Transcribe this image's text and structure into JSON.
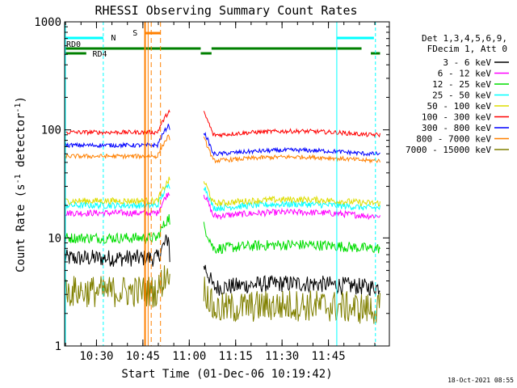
{
  "chart_data": {
    "type": "line",
    "title": "RHESSI Observing Summary Count Rates",
    "xlabel": "Start Time (01-Dec-06 10:19:42)",
    "ylabel_main": "Count Rate (s",
    "ylabel_sup1": "-1",
    "ylabel_mid": " detector",
    "ylabel_sup2": "-1",
    "ylabel_end": ")",
    "yscale": "log",
    "ylim": [
      1,
      1000
    ],
    "xlim_minutes": [
      0,
      105
    ],
    "x_ticks": [
      {
        "label": "10:30",
        "minute": 10.3
      },
      {
        "label": "10:45",
        "minute": 25.3
      },
      {
        "label": "11:00",
        "minute": 40.3
      },
      {
        "label": "11:15",
        "minute": 55.3
      },
      {
        "label": "11:30",
        "minute": 70.3
      },
      {
        "label": "11:45",
        "minute": 85.3
      }
    ],
    "y_ticks": [
      {
        "label": "1",
        "value": 1
      },
      {
        "label": "10",
        "value": 10
      },
      {
        "label": "100",
        "value": 100
      },
      {
        "label": "1000",
        "value": 1000
      }
    ],
    "legend_header": [
      "Det 1,3,4,5,6,9,",
      "FDecim 1, Att 0"
    ],
    "series": [
      {
        "name": "3 - 6 keV",
        "color": "#000000",
        "pre": 6.5,
        "post": 3.5,
        "noise": 0.08
      },
      {
        "name": "6 - 12 keV",
        "color": "#ff00ff",
        "pre": 17,
        "post": 16,
        "noise": 0.03
      },
      {
        "name": "12 - 25 keV",
        "color": "#00dd00",
        "pre": 10,
        "post": 8,
        "noise": 0.05
      },
      {
        "name": "25 - 50 keV",
        "color": "#00ffff",
        "pre": 20,
        "post": 19,
        "noise": 0.03
      },
      {
        "name": "50 - 100 keV",
        "color": "#dddd00",
        "pre": 22,
        "post": 21,
        "noise": 0.03
      },
      {
        "name": "100 - 300 keV",
        "color": "#ff0000",
        "pre": 95,
        "post": 90,
        "noise": 0.02
      },
      {
        "name": "300 - 800 keV",
        "color": "#0000ff",
        "pre": 72,
        "post": 60,
        "noise": 0.02
      },
      {
        "name": "800 - 7000 keV",
        "color": "#ff8000",
        "pre": 57,
        "post": 52,
        "noise": 0.02
      },
      {
        "name": "7000 - 15000 keV",
        "color": "#808000",
        "pre": 3.2,
        "post": 2.2,
        "noise": 0.15
      }
    ],
    "flags": {
      "n_label": "N",
      "s_label": "S",
      "rd0_label": "RD0",
      "rd4_label": "RD4"
    },
    "timestamp": "18-Oct-2021 08:55"
  }
}
